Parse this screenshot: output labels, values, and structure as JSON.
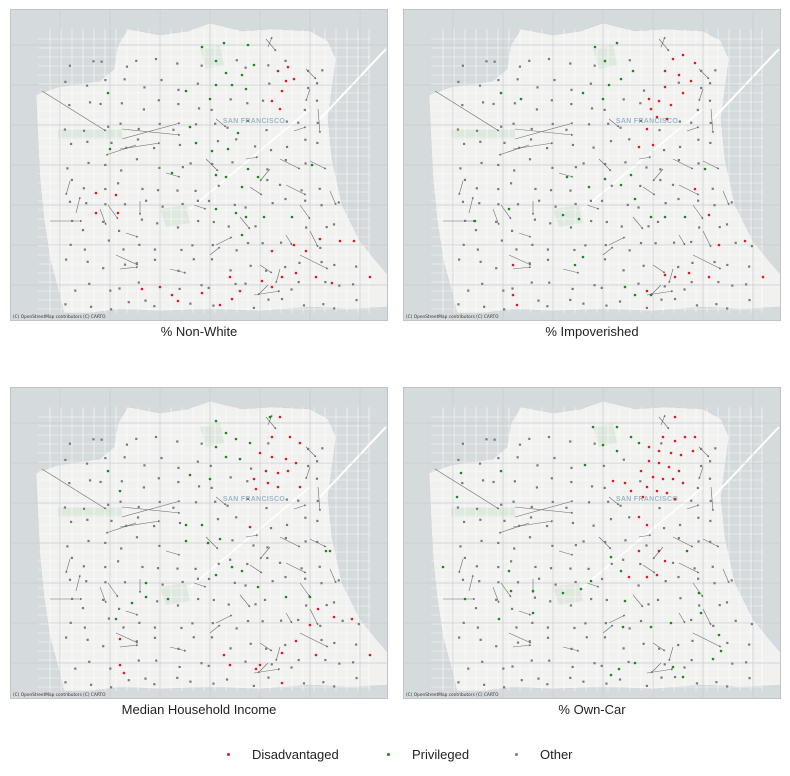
{
  "map_labels": {
    "city": "SAN FRANCISCO",
    "attribution": "(C) OpenStreetMap contributors (C) CARTO"
  },
  "panels": [
    {
      "title": "% Non-White"
    },
    {
      "title": "% Impoverished"
    },
    {
      "title": "Median Household Income"
    },
    {
      "title": "% Own-Car"
    }
  ],
  "legend": {
    "items": [
      {
        "label": "Disadvantaged",
        "color": "#e31a1c"
      },
      {
        "label": "Privileged",
        "color": "#1a8a1a"
      },
      {
        "label": "Other",
        "color": "#7a7a7a"
      }
    ]
  },
  "colors": {
    "water": "#d5dadc",
    "land": "#f1f1f0",
    "park": "#dfe8df",
    "grid": "#c9cdcf",
    "arrow": "#6e6e6e"
  }
}
